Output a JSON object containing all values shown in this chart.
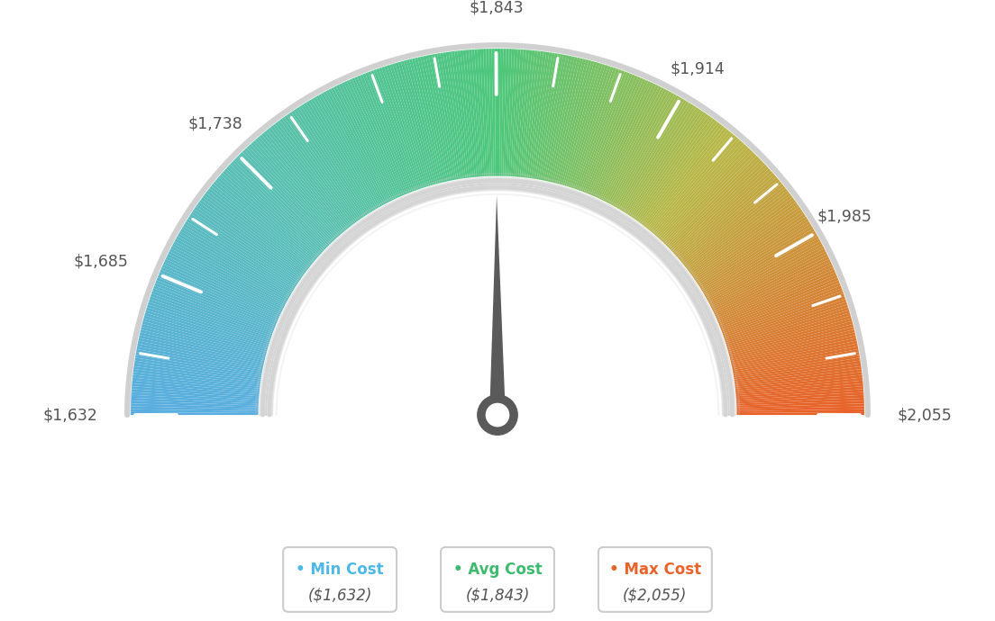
{
  "min_val": 1632,
  "avg_val": 1843,
  "max_val": 2055,
  "label_values": [
    1632,
    1685,
    1738,
    1843,
    1914,
    1985,
    2055
  ],
  "tick_values_major": [
    1632,
    1685,
    1738,
    1843,
    1914,
    1985,
    2055
  ],
  "tick_values_minor": [
    1655,
    1709,
    1762,
    1796,
    1820,
    1866,
    1890,
    1938,
    1962,
    2010,
    2032
  ],
  "min_cost_label": "Min Cost",
  "avg_cost_label": "Avg Cost",
  "max_cost_label": "Max Cost",
  "min_cost_value": "($1,632)",
  "avg_cost_value": "($1,843)",
  "max_cost_value": "($2,055)",
  "min_color": "#4db8e8",
  "avg_color": "#3dba6e",
  "max_color": "#e8622a",
  "background_color": "#ffffff",
  "needle_value": 1843,
  "color_stops": [
    [
      0.0,
      [
        0.35,
        0.68,
        0.88
      ]
    ],
    [
      0.25,
      [
        0.35,
        0.75,
        0.7
      ]
    ],
    [
      0.5,
      [
        0.3,
        0.78,
        0.48
      ]
    ],
    [
      0.72,
      [
        0.72,
        0.72,
        0.28
      ]
    ],
    [
      1.0,
      [
        0.91,
        0.38,
        0.16
      ]
    ]
  ]
}
